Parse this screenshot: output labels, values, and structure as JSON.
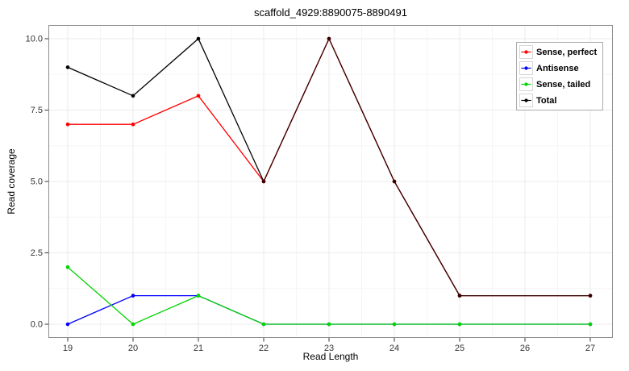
{
  "chart_data": {
    "type": "line",
    "title": "scaffold_4929:8890075-8890491",
    "xlabel": "Read Length",
    "ylabel": "Read coverage",
    "x": [
      19,
      20,
      21,
      22,
      23,
      24,
      25,
      27
    ],
    "x_tick_values": [
      19,
      20,
      21,
      22,
      23,
      24,
      25,
      26,
      27
    ],
    "x_ticks": [
      "19",
      "20",
      "21",
      "22",
      "23",
      "24",
      "25",
      "26",
      "27"
    ],
    "y_tick_values": [
      0,
      2.5,
      5,
      7.5,
      10
    ],
    "y_ticks": [
      "0.0",
      "2.5",
      "5.0",
      "7.5",
      "10.0"
    ],
    "xlim": [
      18.7,
      27.35
    ],
    "ylim": [
      -0.48,
      10.48
    ],
    "grid": {
      "major": true,
      "minor": true
    },
    "legend_position": "top-right-inside",
    "series": [
      {
        "name": "Sense, perfect",
        "color": "#FF0000",
        "marker": "circle",
        "values": [
          7,
          7,
          8,
          5,
          10,
          5,
          1,
          1
        ]
      },
      {
        "name": "Antisense",
        "color": "#0000FF",
        "marker": "circle",
        "values": [
          0,
          1,
          1,
          0,
          0,
          0,
          0,
          0
        ]
      },
      {
        "name": "Sense, tailed",
        "color": "#00D500",
        "marker": "circle",
        "values": [
          2,
          0,
          1,
          0,
          0,
          0,
          0,
          0
        ]
      },
      {
        "name": "Total",
        "color": "#000000",
        "marker": "circle",
        "values": [
          9,
          8,
          10,
          5,
          10,
          5,
          1,
          1
        ]
      }
    ],
    "overlay": {
      "series_index": 0,
      "opacity": 0.22
    },
    "colors": {
      "panel_border": "#8C8C8C",
      "grid_major": "#EBEBEB",
      "grid_minor": "#F5F5F5",
      "tick_mark": "#333333",
      "tick_text": "#333333"
    },
    "icons": {
      "legend_key": "line-with-point"
    }
  }
}
